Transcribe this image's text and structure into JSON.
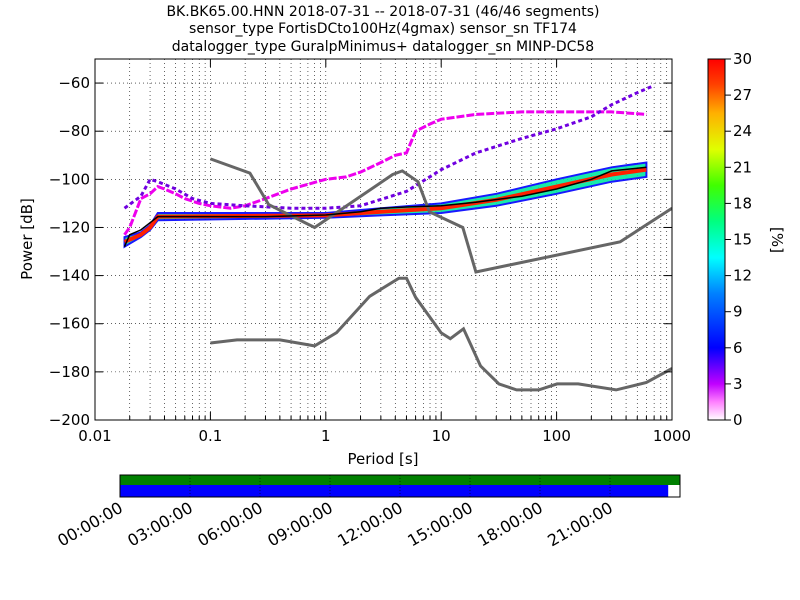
{
  "title_lines": [
    "BK.BK65.00.HNN   2018-07-31 -- 2018-07-31  (46/46 segments)",
    "sensor_type FortisDCto100Hz(4gmax) sensor_sn TF174",
    "datalogger_type GuralpMinimus+ datalogger_sn MINP-DC58"
  ],
  "colors": {
    "noise_model": "#666666",
    "mode_line": "#000000",
    "coverage_bar": "#008000",
    "data_bar": "#0000ff"
  },
  "chart_data": {
    "type": "heatmap",
    "xlabel": "Period [s]",
    "ylabel": "Power [dB]",
    "x_scale": "log",
    "xlim": [
      0.01,
      1000
    ],
    "ylim": [
      -200,
      -50
    ],
    "grid": true,
    "x_ticks": [
      0.01,
      0.1,
      1,
      10,
      100,
      1000
    ],
    "x_tick_labels": [
      "0.01",
      "0.1",
      "1",
      "10",
      "100",
      "1000"
    ],
    "y_ticks": [
      -200,
      -180,
      -160,
      -140,
      -120,
      -100,
      -80,
      -60
    ],
    "y_tick_labels": [
      "−200",
      "−180",
      "−160",
      "−140",
      "−120",
      "−100",
      "−80",
      "−60"
    ],
    "colorbar": {
      "label": "[%]",
      "range": [
        0,
        30
      ],
      "ticks": [
        0,
        3,
        6,
        9,
        12,
        15,
        18,
        21,
        24,
        27,
        30
      ],
      "tick_labels": [
        "0",
        "3",
        "6",
        "9",
        "12",
        "15",
        "18",
        "21",
        "24",
        "27",
        "30"
      ]
    },
    "high_noise_model": {
      "x": [
        0.1,
        0.22,
        0.32,
        0.8,
        3.8,
        4.6,
        6.3,
        7.9,
        15.4,
        20,
        354.8,
        1000
      ],
      "y": [
        -91.5,
        -97.4,
        -110.5,
        -120,
        -98,
        -96.5,
        -101,
        -113.5,
        -120,
        -138.5,
        -126,
        -112
      ]
    },
    "low_noise_model": {
      "x": [
        0.1,
        0.17,
        0.4,
        0.8,
        1.24,
        2.4,
        4.3,
        5,
        6,
        10,
        12,
        15.6,
        21.9,
        31.6,
        45,
        70,
        101,
        154,
        328,
        600,
        1000
      ],
      "y": [
        -168,
        -166.7,
        -166.7,
        -169.2,
        -163.7,
        -148.6,
        -141.1,
        -141.1,
        -149,
        -163.8,
        -166.2,
        -162.1,
        -177.5,
        -185,
        -187.5,
        -187.5,
        -185,
        -185,
        -187.5,
        -184.4,
        -178.6
      ]
    },
    "mode_curve": {
      "x": [
        0.018,
        0.02,
        0.025,
        0.03,
        0.035,
        0.05,
        0.1,
        0.3,
        1,
        2,
        3,
        5,
        10,
        20,
        50,
        100,
        200,
        300,
        600
      ],
      "y": [
        -128,
        -123,
        -121,
        -118,
        -115.5,
        -115.5,
        -115.5,
        -115.5,
        -114.8,
        -113.5,
        -112,
        -111.5,
        -111,
        -109.5,
        -107,
        -104,
        -100,
        -96.5,
        -95
      ]
    },
    "psd_band": {
      "x": [
        0.018,
        0.025,
        0.03,
        0.035,
        1,
        3,
        10,
        30,
        100,
        300,
        600
      ],
      "lower": [
        -128,
        -124,
        -121,
        -117,
        -116,
        -115,
        -114,
        -111,
        -106,
        -101,
        -99
      ],
      "upper": [
        -124,
        -122,
        -119,
        -114,
        -114,
        -112,
        -110,
        -106,
        -100,
        -95,
        -93
      ]
    },
    "upper_outlier_trace": {
      "x": [
        0.018,
        0.02,
        0.025,
        0.03,
        0.035,
        0.04,
        0.05,
        0.06,
        0.08,
        0.1,
        0.15,
        0.2,
        0.3,
        0.5,
        1,
        1.5,
        2,
        3,
        4,
        5,
        6,
        8,
        10,
        20,
        50,
        100,
        200,
        300,
        600
      ],
      "y": [
        -123,
        -120,
        -108,
        -106,
        -103,
        -104,
        -106,
        -108,
        -110,
        -111,
        -112,
        -111,
        -108,
        -104,
        -100,
        -99,
        -97,
        -93,
        -90,
        -89,
        -80,
        -77,
        -75,
        -73,
        -72,
        -72,
        -72,
        -72,
        -73
      ]
    },
    "lower_outlier_trace": {
      "x": [
        0.018,
        0.025,
        0.03,
        0.035,
        0.05,
        0.07,
        0.1,
        0.2,
        0.5,
        1,
        2,
        5,
        10,
        20,
        50,
        100,
        200,
        300,
        500,
        700
      ],
      "y": [
        -112,
        -107,
        -100,
        -101,
        -104,
        -108,
        -110,
        -111,
        -112,
        -112,
        -111,
        -105,
        -96,
        -89,
        -83,
        -79,
        -74,
        -69,
        -64,
        -61
      ]
    },
    "time_axis": {
      "labels": [
        "00:00:00",
        "03:00:00",
        "06:00:00",
        "09:00:00",
        "12:00:00",
        "15:00:00",
        "18:00:00",
        "21:00:00"
      ],
      "data_coverage_fraction": 0.979
    }
  }
}
